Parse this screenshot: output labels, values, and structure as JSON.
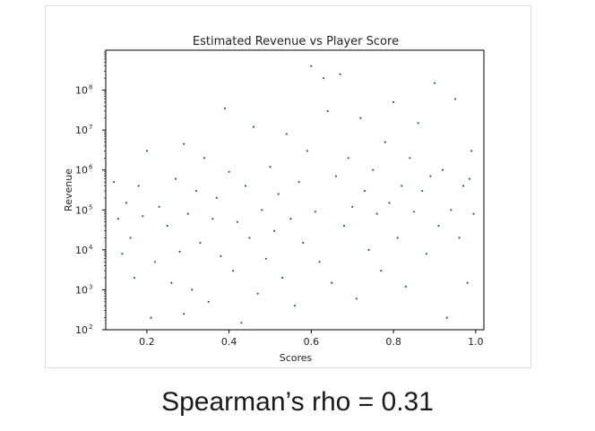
{
  "caption": "Spearman’s rho = 0.31",
  "chart_data": {
    "type": "scatter",
    "title": "Estimated Revenue vs Player Score",
    "xlabel": "Scores",
    "ylabel": "Revenue",
    "xlim": [
      0.1,
      1.02
    ],
    "ylim": [
      100,
      1000000000
    ],
    "yscale": "log",
    "xticks": [
      0.2,
      0.4,
      0.6,
      0.8,
      1.0
    ],
    "xtick_labels": [
      "0.2",
      "0.4",
      "0.6",
      "0.8",
      "1.0"
    ],
    "yticks": [
      100,
      1000,
      10000,
      100000,
      1000000,
      10000000,
      100000000
    ],
    "ytick_labels": [
      "10",
      "10",
      "10",
      "10",
      "10",
      "10",
      "10"
    ],
    "ytick_exponents": [
      "2",
      "3",
      "4",
      "5",
      "6",
      "7",
      "8"
    ],
    "grid": false,
    "marker_color": "#1f5f8f",
    "spearman_rho": 0.31,
    "points": [
      [
        0.12,
        500000
      ],
      [
        0.13,
        60000
      ],
      [
        0.14,
        8000
      ],
      [
        0.15,
        150000
      ],
      [
        0.16,
        20000
      ],
      [
        0.17,
        2000
      ],
      [
        0.18,
        400000
      ],
      [
        0.19,
        70000
      ],
      [
        0.2,
        3000000
      ],
      [
        0.21,
        200
      ],
      [
        0.22,
        5000
      ],
      [
        0.23,
        120000
      ],
      [
        0.25,
        40000
      ],
      [
        0.26,
        1500
      ],
      [
        0.27,
        600000
      ],
      [
        0.28,
        9000
      ],
      [
        0.29,
        4500000
      ],
      [
        0.29,
        250
      ],
      [
        0.3,
        80000
      ],
      [
        0.31,
        1000
      ],
      [
        0.32,
        300000
      ],
      [
        0.33,
        15000
      ],
      [
        0.34,
        2000000
      ],
      [
        0.35,
        500
      ],
      [
        0.36,
        60000
      ],
      [
        0.37,
        200000
      ],
      [
        0.38,
        7000
      ],
      [
        0.39,
        35000000
      ],
      [
        0.4,
        900000
      ],
      [
        0.41,
        3000
      ],
      [
        0.42,
        50000
      ],
      [
        0.43,
        150
      ],
      [
        0.44,
        400000
      ],
      [
        0.45,
        20000
      ],
      [
        0.46,
        12000000
      ],
      [
        0.47,
        800
      ],
      [
        0.48,
        100000
      ],
      [
        0.49,
        6000
      ],
      [
        0.5,
        1200000
      ],
      [
        0.51,
        30000
      ],
      [
        0.52,
        250000
      ],
      [
        0.53,
        2000
      ],
      [
        0.54,
        8000000
      ],
      [
        0.55,
        60000
      ],
      [
        0.56,
        400
      ],
      [
        0.57,
        500000
      ],
      [
        0.58,
        15000
      ],
      [
        0.59,
        3000000
      ],
      [
        0.6,
        400000000
      ],
      [
        0.61,
        90000
      ],
      [
        0.62,
        5000
      ],
      [
        0.63,
        200000000
      ],
      [
        0.64,
        30000000
      ],
      [
        0.65,
        1500
      ],
      [
        0.66,
        700000
      ],
      [
        0.67,
        250000000
      ],
      [
        0.68,
        40000
      ],
      [
        0.69,
        2000000
      ],
      [
        0.7,
        120000
      ],
      [
        0.71,
        600
      ],
      [
        0.72,
        20000000
      ],
      [
        0.73,
        300000
      ],
      [
        0.74,
        10000
      ],
      [
        0.75,
        1000000
      ],
      [
        0.76,
        80000
      ],
      [
        0.77,
        3000
      ],
      [
        0.78,
        5000000
      ],
      [
        0.79,
        150000
      ],
      [
        0.8,
        50000000
      ],
      [
        0.81,
        20000
      ],
      [
        0.82,
        400000
      ],
      [
        0.83,
        1200
      ],
      [
        0.84,
        2000000
      ],
      [
        0.85,
        90000
      ],
      [
        0.86,
        15000000
      ],
      [
        0.87,
        300000
      ],
      [
        0.88,
        8000
      ],
      [
        0.89,
        700000
      ],
      [
        0.9,
        150000000
      ],
      [
        0.91,
        40000
      ],
      [
        0.92,
        1000000
      ],
      [
        0.93,
        200
      ],
      [
        0.94,
        100000
      ],
      [
        0.95,
        60000000
      ],
      [
        0.96,
        20000
      ],
      [
        0.97,
        400000
      ],
      [
        0.98,
        1500
      ],
      [
        0.99,
        3000000
      ],
      [
        0.995,
        80000
      ],
      [
        0.985,
        600000
      ]
    ],
    "density_note_hidden": ""
  }
}
